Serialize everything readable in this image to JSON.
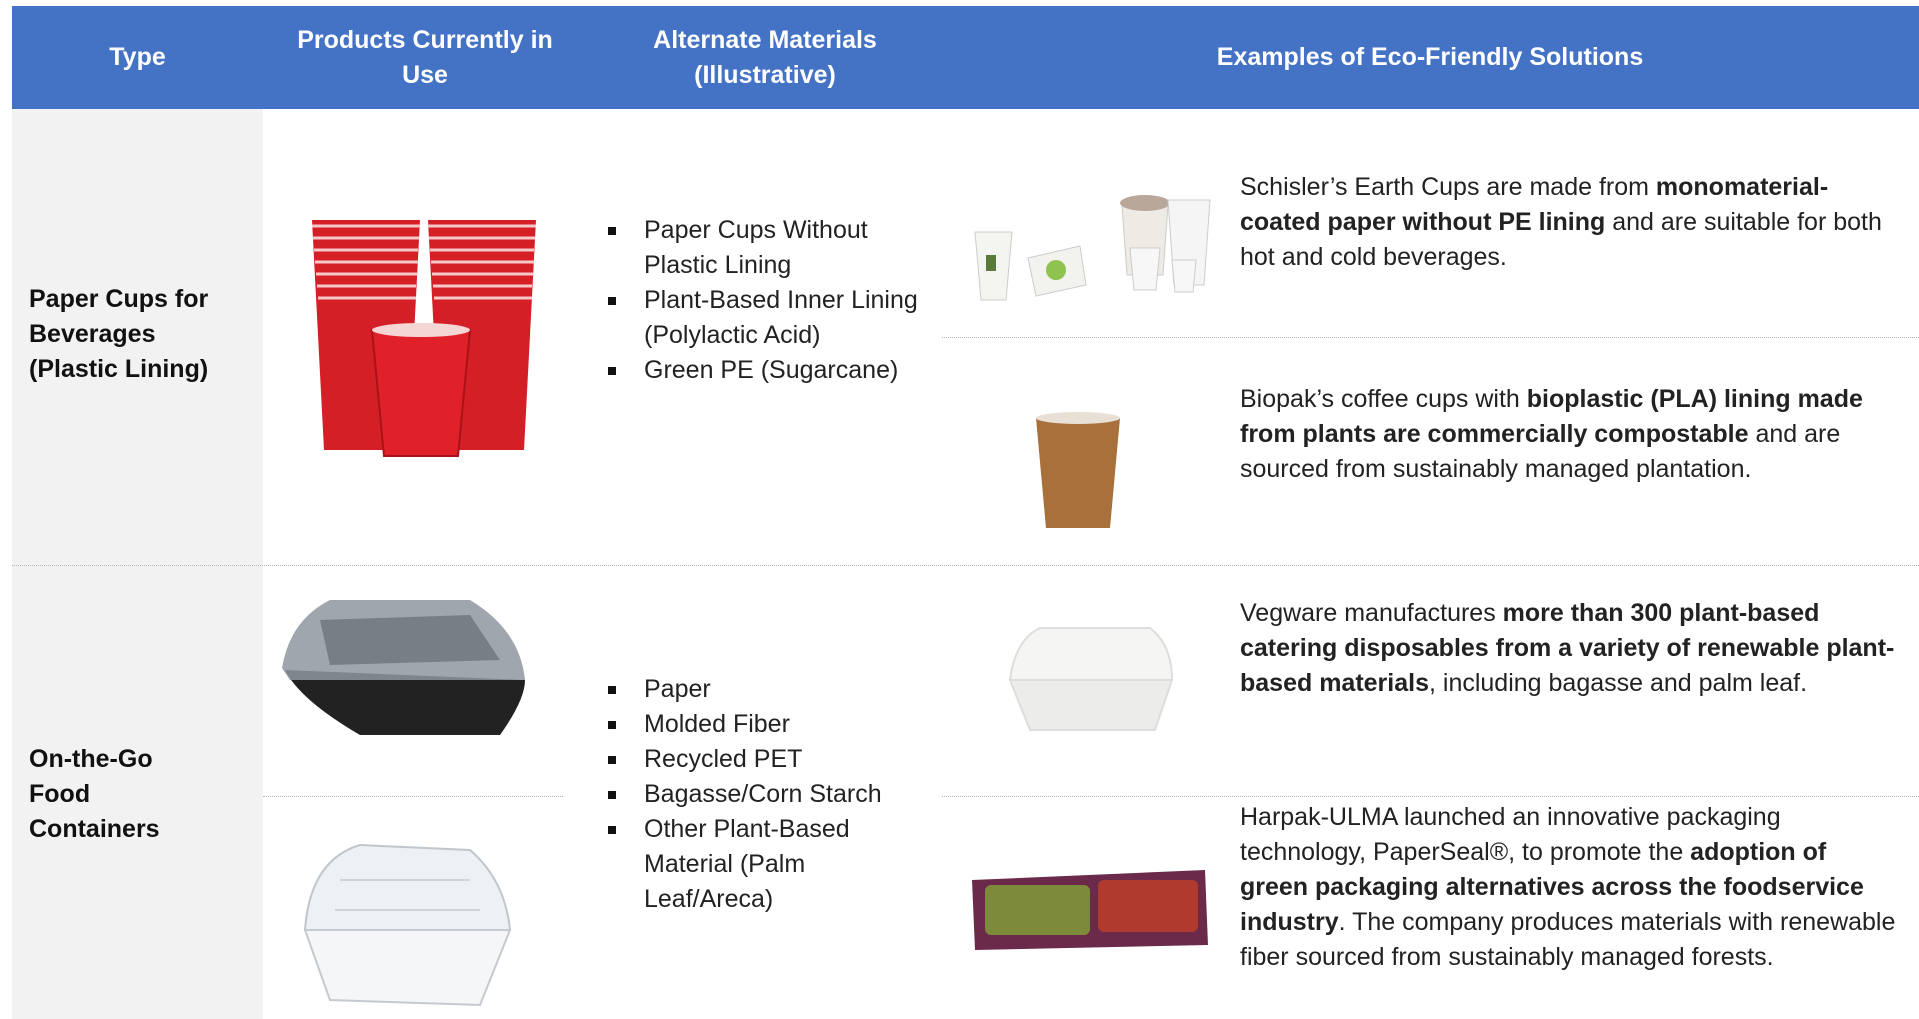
{
  "header": {
    "columns": [
      "Type",
      "Products Currently in Use",
      "Alternate Materials (Illustrative)",
      "Examples of Eco-Friendly Solutions"
    ]
  },
  "rows": [
    {
      "type": "Paper Cups for Beverages (Plastic Lining)",
      "alternatives": [
        "Paper Cups Without Plastic Lining",
        "Plant-Based Inner Lining (Polylactic Acid)",
        "Green PE (Sugarcane)"
      ],
      "examples": [
        {
          "segments": [
            {
              "text": "Schisler’s Earth Cups are made from ",
              "bold": false
            },
            {
              "text": "monomaterial-coated paper without PE lining",
              "bold": true
            },
            {
              "text": " and are suitable for both hot and cold beverages.",
              "bold": false
            }
          ]
        },
        {
          "segments": [
            {
              "text": "Biopak’s coffee cups with ",
              "bold": false
            },
            {
              "text": "bioplastic (PLA) lining made from plants are commercially compostable",
              "bold": true
            },
            {
              "text": " and are sourced from sustainably managed plantation.",
              "bold": false
            }
          ]
        }
      ]
    },
    {
      "type": "On-the-Go Food Containers",
      "alternatives": [
        "Paper",
        "Molded Fiber",
        "Recycled PET",
        "Bagasse/Corn Starch",
        "Other Plant-Based Material (Palm Leaf/Areca)"
      ],
      "examples": [
        {
          "segments": [
            {
              "text": "Vegware manufactures ",
              "bold": false
            },
            {
              "text": "more than 300 plant-based catering disposables from a variety of renewable plant-based materials",
              "bold": true
            },
            {
              "text": ", including bagasse and palm leaf.",
              "bold": false
            }
          ]
        },
        {
          "segments": [
            {
              "text": "Harpak-ULMA launched an innovative packaging technology, PaperSeal®, to promote the ",
              "bold": false
            },
            {
              "text": "adoption of green packaging alternatives across the foodservice industry",
              "bold": true
            },
            {
              "text": ". The company produces materials with renewable fiber sourced from sustainably managed forests.",
              "bold": false
            }
          ]
        }
      ]
    }
  ]
}
